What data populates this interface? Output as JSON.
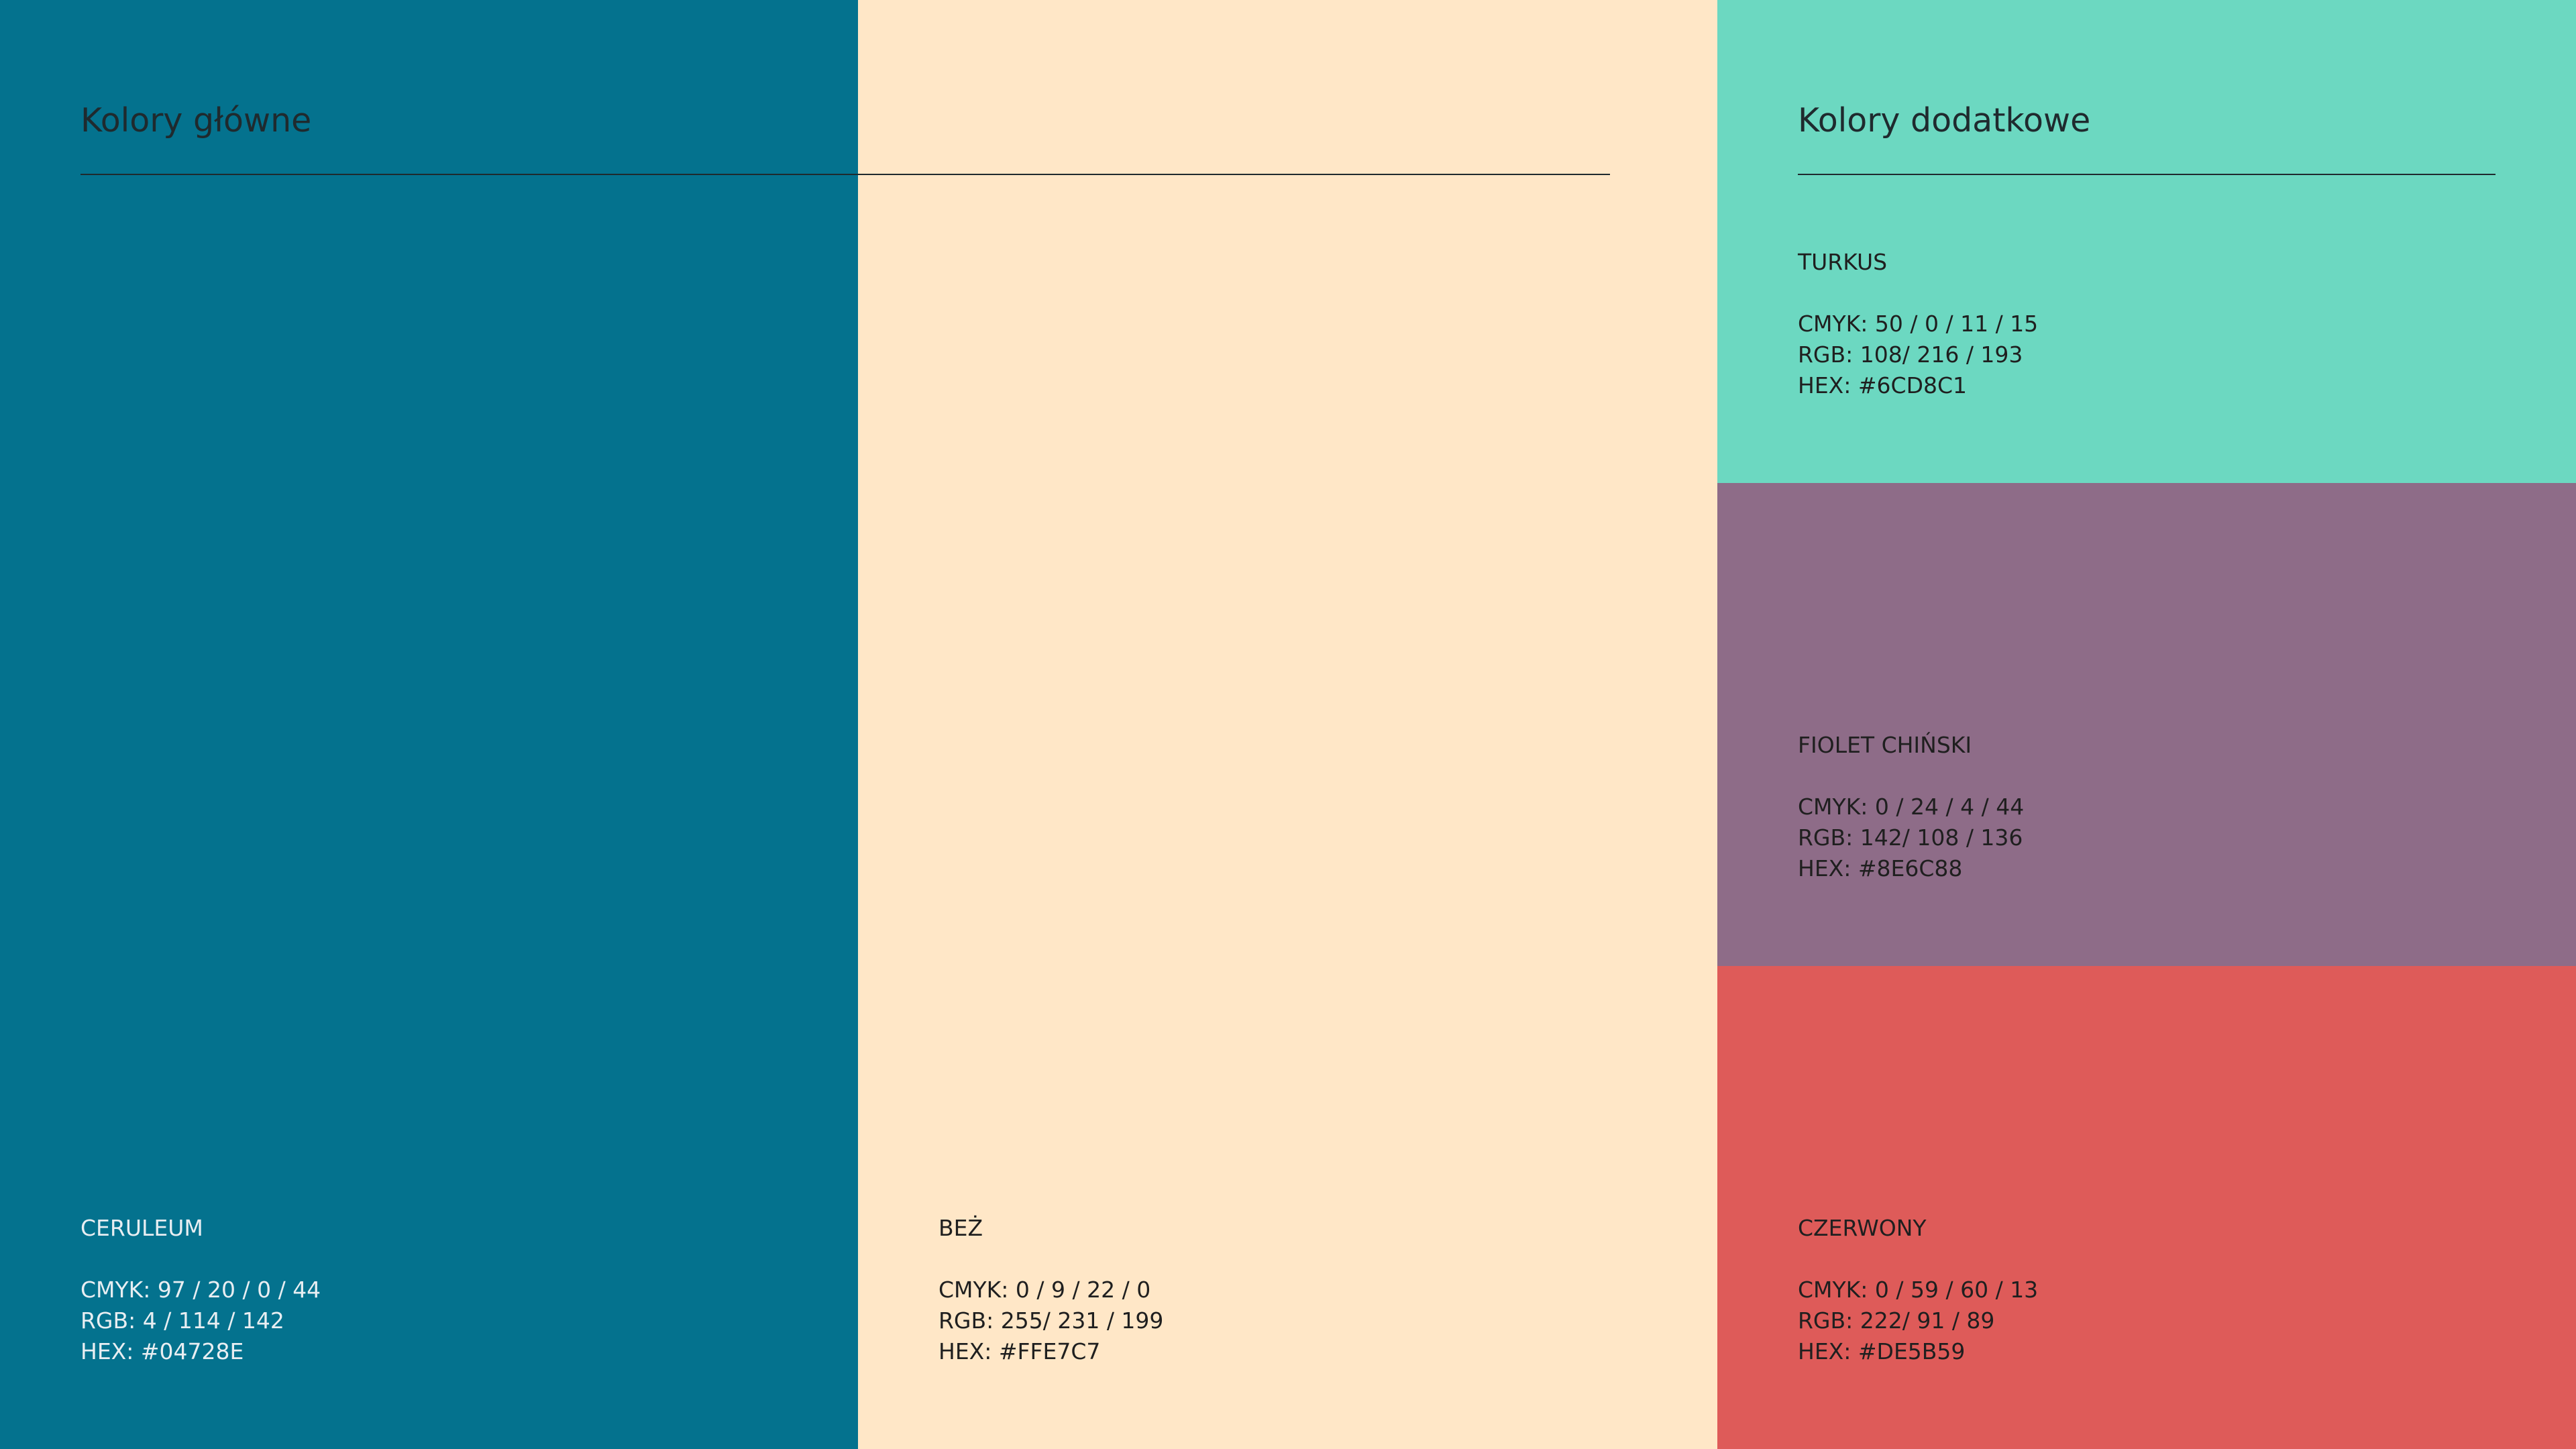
{
  "sections": {
    "main_title": "Kolory główne",
    "extra_title": "Kolory dodatkowe"
  },
  "colors": {
    "ceruleum": {
      "name": "CERULEUM",
      "cmyk": "CMYK:  97 / 20 / 0 / 44",
      "rgb": "RGB: 4 / 114 / 142",
      "hex": "HEX: #04728E",
      "swatch": "#04728E"
    },
    "bez": {
      "name": "BEŻ",
      "cmyk": "CMYK: 0 / 9 / 22 / 0",
      "rgb": "RGB: 255/ 231 / 199",
      "hex": "HEX: #FFE7C7",
      "swatch": "#FFE7C7"
    },
    "turkus": {
      "name": "TURKUS",
      "cmyk": "CMYK: 50 / 0 / 11 / 15",
      "rgb": "RGB: 108/ 216 / 193",
      "hex": "HEX: #6CD8C1",
      "swatch": "#6CD8C1"
    },
    "fiolet": {
      "name": "FIOLET CHIŃSKI",
      "cmyk": "CMYK: 0 / 24 / 4 / 44",
      "rgb": "RGB: 142/ 108 / 136",
      "hex": "HEX: #8E6C88",
      "swatch": "#8E6C88"
    },
    "czerwony": {
      "name": "CZERWONY",
      "cmyk": "CMYK: 0 / 59 / 60 / 13",
      "rgb": "RGB: 222/ 91 / 89",
      "hex": "HEX: #DE5B59",
      "swatch": "#DE5B59"
    }
  }
}
